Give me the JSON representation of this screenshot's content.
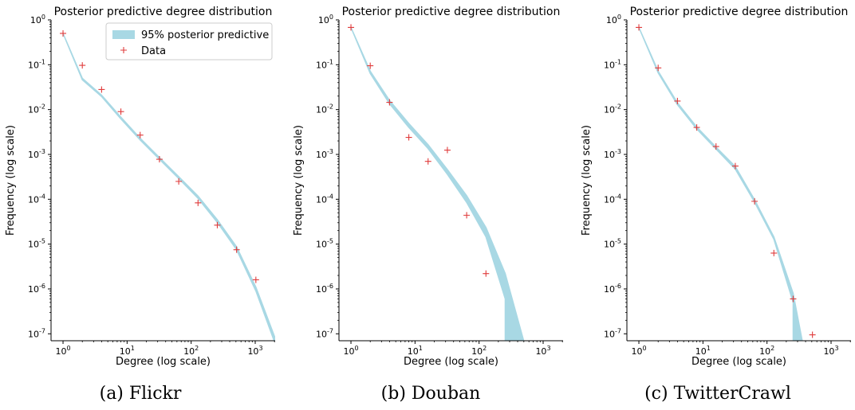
{
  "colors": {
    "band": "#a8d8e4",
    "data_marker": "#e03c3c",
    "axis": "#000000"
  },
  "legend_labels": [
    "95% posterior predictive",
    "Data"
  ],
  "chart_data": [
    {
      "type": "line",
      "caption": "(a) Flickr",
      "title": "Posterior predictive degree distribution",
      "xlabel": "Degree (log scale)",
      "ylabel": "Frequency (log scale)",
      "xscale": "log",
      "yscale": "log",
      "xlim": [
        0.65,
        2048
      ],
      "ylim": [
        7e-08,
        1
      ],
      "xticks": [
        "10^0",
        "10^1",
        "10^2",
        "10^3"
      ],
      "yticks": [
        "10^0",
        "10^-1",
        "10^-2",
        "10^-3",
        "10^-4",
        "10^-5",
        "10^-6",
        "10^-7"
      ],
      "legend": {
        "placement": "top-right",
        "entries": [
          "95% posterior predictive",
          "Data"
        ]
      },
      "band": {
        "name": "95% posterior predictive",
        "x": [
          1,
          2,
          4,
          8,
          16,
          32,
          64,
          128,
          256,
          512,
          1024,
          2048
        ],
        "lower": [
          0.5,
          0.046,
          0.0195,
          0.0062,
          0.0021,
          0.00078,
          0.00029,
          0.000105,
          3.05e-05,
          7.5e-06,
          9e-07,
          6e-08
        ],
        "upper": [
          0.5,
          0.05,
          0.021,
          0.0068,
          0.0023,
          0.00085,
          0.00032,
          0.000118,
          3.5e-05,
          8.7e-06,
          1.1e-06,
          8e-08
        ]
      },
      "series": [
        {
          "name": "Data",
          "marker": "+",
          "x": [
            1,
            2,
            4,
            8,
            16,
            32,
            64,
            128,
            256,
            512,
            1024
          ],
          "y": [
            0.5,
            0.097,
            0.028,
            0.009,
            0.0027,
            0.00078,
            0.00025,
            8.3e-05,
            2.65e-05,
            7.5e-06,
            1.6e-06
          ]
        }
      ]
    },
    {
      "type": "line",
      "caption": "(b) Douban",
      "title": "Posterior predictive degree distribution",
      "xlabel": "Degree (log scale)",
      "ylabel": "Frequency (log scale)",
      "xscale": "log",
      "yscale": "log",
      "xlim": [
        0.65,
        2048
      ],
      "ylim": [
        7e-08,
        1
      ],
      "xticks": [
        "10^0",
        "10^1",
        "10^2",
        "10^3"
      ],
      "yticks": [
        "10^0",
        "10^-1",
        "10^-2",
        "10^-3",
        "10^-4",
        "10^-5",
        "10^-6",
        "10^-7"
      ],
      "band": {
        "name": "95% posterior predictive",
        "x": [
          1,
          2,
          4,
          8,
          16,
          32,
          64,
          128,
          256,
          256,
          512
        ],
        "lower": [
          0.68,
          0.064,
          0.0135,
          0.004,
          0.00135,
          0.00036,
          8.5e-05,
          1.45e-05,
          6e-07,
          6e-08,
          6e-08
        ],
        "upper": [
          0.68,
          0.072,
          0.016,
          0.0049,
          0.00165,
          0.00046,
          0.00012,
          2.35e-05,
          2.2e-06,
          2.2e-06,
          6e-08
        ]
      },
      "series": [
        {
          "name": "Data",
          "marker": "+",
          "x": [
            1,
            2,
            4,
            8,
            16,
            32,
            64,
            128
          ],
          "y": [
            0.68,
            0.095,
            0.0145,
            0.0024,
            0.0007,
            0.00125,
            4.4e-05,
            2.2e-06
          ]
        }
      ]
    },
    {
      "type": "line",
      "caption": "(c) TwitterCrawl",
      "title": "Posterior predictive degree distribution",
      "xlabel": "Degree (log scale)",
      "ylabel": "Frequency (log scale)",
      "xscale": "log",
      "yscale": "log",
      "xlim": [
        0.65,
        2048
      ],
      "ylim": [
        7e-08,
        1
      ],
      "xticks": [
        "10^0",
        "10^1",
        "10^2",
        "10^3"
      ],
      "yticks": [
        "10^0",
        "10^-1",
        "10^-2",
        "10^-3",
        "10^-4",
        "10^-5",
        "10^-6",
        "10^-7"
      ],
      "band": {
        "name": "95% posterior predictive",
        "x": [
          1,
          2,
          4,
          8,
          16,
          32,
          64,
          128,
          256,
          256,
          362
        ],
        "lower": [
          0.68,
          0.066,
          0.0128,
          0.0037,
          0.00132,
          0.00047,
          8.65e-05,
          1.28e-05,
          5e-07,
          6e-08,
          6e-08
        ],
        "upper": [
          0.68,
          0.072,
          0.0142,
          0.0041,
          0.00146,
          0.00054,
          9.75e-05,
          1.45e-05,
          8e-07,
          8e-07,
          6e-08
        ]
      },
      "series": [
        {
          "name": "Data",
          "marker": "+",
          "x": [
            1,
            2,
            4,
            8,
            16,
            32,
            64,
            128,
            256,
            512
          ],
          "y": [
            0.68,
            0.085,
            0.0155,
            0.004,
            0.0015,
            0.00055,
            9e-05,
            6.3e-06,
            6e-07,
            9.5e-08
          ]
        }
      ]
    }
  ]
}
